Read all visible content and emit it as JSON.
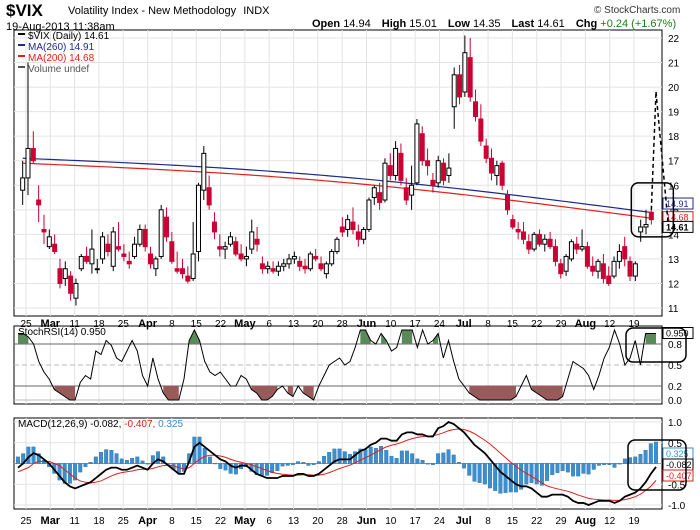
{
  "header": {
    "symbol": "$VIX",
    "name": "Volatility Index - New Methodology",
    "exchange": "INDX",
    "copyright": "© StockCharts.com",
    "date": "19-Aug-2013 11:38am",
    "quote": {
      "open_label": "Open",
      "open": "14.94",
      "high_label": "High",
      "high": "15.01",
      "low_label": "Low",
      "low": "14.35",
      "last_label": "Last",
      "last": "14.61",
      "chg_label": "Chg",
      "chg": "+0.24 (+1.67%)",
      "chg_color": "#1a7f1a"
    }
  },
  "colors": {
    "up": "#000000",
    "down": "#cc0033",
    "ma260": "#1c2a8a",
    "ma200": "#e0201a",
    "stoch_fill_hi": "#5a8a5a",
    "stoch_fill_lo": "#9a5a5a",
    "macd_hist": "#3a8fd0",
    "macd_signal": "#e0201a"
  },
  "chart_data": [
    {
      "type": "candlestick",
      "panel": "price",
      "legend": [
        "$VIX (Daily) 14.61",
        "MA(260) 14.91",
        "MA(200) 14.68",
        "Volume undef"
      ],
      "ylim": [
        11,
        22
      ],
      "y_ticks": [
        "11",
        "12",
        "13",
        "14",
        "15",
        "16",
        "17",
        "18",
        "19",
        "20",
        "21",
        "22"
      ],
      "x_tick_labels": [
        "25",
        "Mar",
        "11",
        "18",
        "25",
        "Apr",
        "8",
        "15",
        "22",
        "May",
        "6",
        "13",
        "20",
        "28",
        "Jun",
        "10",
        "17",
        "24",
        "Jul",
        "8",
        "15",
        "22",
        "29",
        "Aug",
        "12",
        "19"
      ],
      "candles": [
        [
          15.8,
          17.0,
          15.2,
          16.3
        ],
        [
          16.3,
          21.0,
          15.6,
          17.5
        ],
        [
          17.5,
          18.2,
          16.9,
          17.0
        ],
        [
          15.4,
          16.0,
          14.5,
          15.2
        ],
        [
          14.2,
          14.8,
          13.6,
          14.1
        ],
        [
          13.5,
          14.2,
          13.4,
          13.9
        ],
        [
          13.6,
          14.0,
          13.2,
          13.3
        ],
        [
          12.6,
          13.0,
          11.8,
          12.0
        ],
        [
          12.2,
          12.9,
          11.9,
          12.6
        ],
        [
          12.3,
          12.5,
          11.3,
          11.6
        ],
        [
          11.4,
          12.2,
          11.1,
          12.0
        ],
        [
          12.6,
          13.2,
          12.5,
          13.1
        ],
        [
          13.1,
          13.5,
          12.8,
          12.9
        ],
        [
          12.8,
          14.2,
          12.4,
          13.4
        ],
        [
          12.6,
          13.0,
          12.4,
          12.6
        ],
        [
          13.0,
          14.1,
          12.8,
          13.9
        ],
        [
          13.6,
          14.0,
          13.1,
          13.3
        ],
        [
          12.7,
          14.3,
          12.5,
          14.1
        ],
        [
          13.5,
          14.5,
          13.3,
          13.4
        ],
        [
          13.2,
          13.6,
          12.9,
          13.1
        ],
        [
          12.9,
          13.3,
          12.6,
          12.8
        ],
        [
          13.1,
          13.9,
          13.0,
          13.6
        ],
        [
          13.6,
          14.4,
          13.5,
          14.2
        ],
        [
          14.2,
          14.4,
          13.3,
          13.5
        ],
        [
          13.2,
          13.5,
          12.6,
          12.8
        ],
        [
          12.6,
          13.1,
          12.3,
          13.0
        ],
        [
          13.1,
          15.2,
          13.0,
          15.0
        ],
        [
          14.7,
          15.1,
          13.7,
          13.9
        ],
        [
          13.7,
          14.1,
          12.8,
          12.9
        ],
        [
          12.6,
          13.3,
          12.4,
          12.5
        ],
        [
          12.6,
          13.0,
          12.2,
          12.4
        ],
        [
          12.3,
          12.7,
          12.0,
          12.1
        ],
        [
          12.2,
          14.5,
          12.1,
          13.2
        ],
        [
          13.3,
          16.1,
          12.9,
          16.0
        ],
        [
          15.8,
          17.6,
          15.4,
          17.3
        ],
        [
          15.9,
          16.4,
          15.0,
          15.2
        ],
        [
          14.5,
          14.9,
          13.8,
          14.1
        ],
        [
          13.5,
          14.0,
          13.1,
          13.4
        ],
        [
          13.4,
          13.7,
          13.0,
          13.5
        ],
        [
          13.6,
          14.1,
          13.5,
          13.9
        ],
        [
          13.7,
          13.9,
          13.1,
          13.2
        ],
        [
          13.2,
          13.6,
          12.9,
          13.0
        ],
        [
          13.0,
          13.5,
          12.7,
          13.1
        ],
        [
          13.4,
          14.6,
          13.2,
          14.1
        ],
        [
          13.8,
          14.3,
          13.3,
          13.6
        ],
        [
          12.8,
          13.1,
          12.4,
          12.6
        ],
        [
          12.6,
          12.9,
          12.4,
          12.7
        ],
        [
          12.6,
          12.9,
          12.4,
          12.5
        ],
        [
          12.5,
          12.9,
          12.3,
          12.7
        ],
        [
          12.7,
          13.0,
          12.5,
          12.8
        ],
        [
          12.8,
          13.2,
          12.6,
          13.0
        ],
        [
          13.0,
          13.3,
          12.8,
          13.1
        ],
        [
          12.9,
          13.1,
          12.5,
          12.7
        ],
        [
          12.7,
          13.0,
          12.4,
          12.6
        ],
        [
          12.6,
          13.3,
          12.5,
          13.2
        ],
        [
          13.1,
          13.4,
          12.9,
          13.0
        ],
        [
          12.8,
          13.1,
          12.5,
          12.6
        ],
        [
          12.4,
          12.9,
          12.2,
          12.8
        ],
        [
          12.8,
          13.4,
          12.7,
          13.3
        ],
        [
          13.3,
          13.9,
          13.2,
          13.8
        ],
        [
          14.3,
          14.7,
          13.9,
          14.1
        ],
        [
          14.2,
          14.8,
          13.9,
          14.6
        ],
        [
          14.5,
          15.1,
          14.0,
          14.2
        ],
        [
          14.1,
          14.4,
          13.5,
          13.8
        ],
        [
          13.8,
          14.3,
          13.6,
          14.2
        ],
        [
          14.2,
          15.5,
          14.1,
          15.4
        ],
        [
          15.5,
          16.0,
          15.2,
          15.9
        ],
        [
          15.7,
          16.1,
          15.0,
          15.3
        ],
        [
          15.4,
          17.1,
          15.3,
          16.9
        ],
        [
          16.8,
          17.3,
          16.2,
          16.4
        ],
        [
          16.4,
          17.8,
          16.2,
          17.5
        ],
        [
          17.3,
          17.7,
          16.0,
          16.2
        ],
        [
          15.9,
          16.3,
          15.2,
          15.4
        ],
        [
          15.6,
          16.8,
          15.0,
          16.0
        ],
        [
          16.1,
          18.7,
          16.0,
          18.5
        ],
        [
          18.1,
          18.4,
          16.8,
          17.0
        ],
        [
          17.0,
          17.5,
          16.4,
          16.8
        ],
        [
          16.2,
          16.5,
          15.7,
          16.0
        ],
        [
          16.1,
          17.2,
          15.9,
          17.0
        ],
        [
          16.9,
          17.1,
          16.0,
          16.2
        ],
        [
          16.4,
          17.3,
          16.1,
          16.7
        ],
        [
          19.2,
          20.8,
          18.3,
          20.5
        ],
        [
          20.5,
          20.9,
          19.3,
          19.6
        ],
        [
          19.8,
          22.1,
          19.6,
          21.4
        ],
        [
          21.2,
          22.0,
          19.4,
          19.6
        ],
        [
          19.4,
          19.9,
          18.6,
          18.8
        ],
        [
          18.7,
          19.3,
          17.6,
          17.8
        ],
        [
          17.6,
          17.9,
          16.9,
          17.1
        ],
        [
          17.1,
          17.5,
          16.2,
          16.5
        ],
        [
          16.4,
          17.0,
          16.0,
          16.8
        ],
        [
          16.9,
          17.0,
          15.8,
          16.0
        ],
        [
          15.6,
          15.8,
          14.8,
          15.0
        ],
        [
          14.6,
          14.8,
          14.2,
          14.3
        ],
        [
          14.2,
          14.5,
          13.8,
          14.1
        ],
        [
          14.1,
          14.5,
          13.6,
          13.8
        ],
        [
          13.7,
          14.0,
          13.2,
          13.4
        ],
        [
          13.4,
          14.1,
          13.3,
          14.0
        ],
        [
          14.0,
          14.2,
          13.5,
          13.6
        ],
        [
          13.6,
          14.0,
          13.3,
          13.8
        ],
        [
          13.8,
          14.1,
          13.4,
          13.5
        ],
        [
          13.5,
          13.8,
          12.7,
          12.9
        ],
        [
          12.8,
          13.0,
          12.2,
          12.4
        ],
        [
          12.5,
          13.2,
          12.3,
          13.1
        ],
        [
          13.0,
          13.8,
          12.9,
          13.7
        ],
        [
          13.6,
          13.9,
          13.2,
          13.4
        ],
        [
          13.4,
          14.2,
          13.3,
          13.5
        ],
        [
          13.5,
          13.7,
          12.6,
          12.7
        ],
        [
          12.7,
          13.1,
          12.3,
          12.5
        ],
        [
          12.5,
          13.0,
          12.2,
          12.9
        ],
        [
          12.8,
          13.2,
          12.0,
          12.2
        ],
        [
          12.3,
          12.7,
          11.9,
          12.0
        ],
        [
          12.3,
          13.1,
          12.2,
          12.9
        ],
        [
          12.9,
          13.6,
          12.6,
          13.3
        ],
        [
          13.5,
          13.9,
          12.7,
          13.0
        ],
        [
          12.9,
          13.1,
          12.1,
          12.3
        ],
        [
          12.3,
          12.9,
          12.1,
          12.8
        ],
        [
          14.1,
          14.6,
          13.7,
          14.3
        ],
        [
          14.3,
          15.0,
          14.0,
          14.4
        ],
        [
          14.9,
          15.0,
          14.4,
          14.6
        ]
      ],
      "annotations": {
        "price_labels": [
          "14.91",
          "14.68",
          "14.61"
        ],
        "projection_tick": "20"
      }
    },
    {
      "type": "line",
      "panel": "stoch_rsi",
      "legend": "StochRSI(14) 0.950",
      "ylim": [
        0,
        1
      ],
      "y_ticks": [
        "0.0",
        "0.2",
        "0.5",
        "0.8"
      ],
      "last_label": "0.950",
      "values": [
        0.95,
        0.95,
        0.9,
        0.8,
        0.55,
        0.4,
        0.3,
        0.15,
        0.1,
        0.05,
        0.0,
        0.0,
        0.25,
        0.35,
        0.3,
        0.7,
        0.65,
        0.85,
        0.78,
        0.6,
        0.55,
        0.7,
        0.85,
        0.7,
        0.35,
        0.2,
        0.6,
        0.3,
        0.1,
        0.0,
        0.0,
        0.0,
        0.3,
        0.85,
        1.0,
        0.85,
        0.55,
        0.4,
        0.35,
        0.4,
        0.3,
        0.2,
        0.2,
        0.35,
        0.3,
        0.15,
        0.1,
        0.0,
        0.0,
        0.05,
        0.15,
        0.2,
        0.1,
        0.05,
        0.2,
        0.1,
        0.05,
        0.0,
        0.2,
        0.35,
        0.5,
        0.55,
        0.6,
        0.5,
        0.55,
        0.75,
        1.0,
        1.0,
        0.85,
        0.8,
        0.95,
        0.85,
        0.7,
        0.75,
        1.0,
        1.0,
        1.0,
        0.75,
        1.0,
        0.8,
        0.85,
        0.95,
        0.6,
        0.85,
        0.55,
        0.3,
        0.2,
        0.1,
        0.05,
        0.0,
        0.0,
        0.0,
        0.0,
        0.0,
        0.0,
        0.0,
        0.05,
        0.2,
        0.35,
        0.15,
        0.1,
        0.05,
        0.0,
        0.0,
        0.0,
        0.05,
        0.3,
        0.55,
        0.5,
        0.45,
        0.35,
        0.15,
        0.35,
        0.6,
        0.75,
        1.0,
        0.8,
        0.5,
        0.6,
        0.85,
        0.5,
        0.95,
        0.95,
        0.95
      ]
    },
    {
      "type": "line",
      "panel": "macd",
      "legend_prefix": "MACD(12,26,9)",
      "legend_values": [
        "-0.082",
        "-0.407",
        "0.325"
      ],
      "legend_colors": [
        "#000000",
        "#e0201a",
        "#3a8fd0"
      ],
      "ylim": [
        -1.0,
        1.0
      ],
      "y_ticks": [
        "-1.0",
        "-0.5",
        "0.0",
        "0.5",
        "1.0"
      ],
      "last_labels": [
        "0.325",
        "-0.082",
        "-0.407"
      ]
    }
  ],
  "macd_series": {
    "macd": [
      -0.1,
      0.0,
      0.15,
      0.25,
      0.2,
      0.1,
      0.0,
      -0.15,
      -0.3,
      -0.45,
      -0.55,
      -0.6,
      -0.55,
      -0.5,
      -0.45,
      -0.35,
      -0.25,
      -0.15,
      -0.1,
      -0.1,
      -0.15,
      -0.15,
      -0.1,
      -0.05,
      -0.1,
      -0.15,
      0.0,
      0.1,
      0.05,
      -0.05,
      -0.15,
      -0.25,
      -0.25,
      0.05,
      0.4,
      0.5,
      0.4,
      0.3,
      0.2,
      0.1,
      0.05,
      -0.05,
      -0.1,
      -0.05,
      -0.05,
      -0.15,
      -0.25,
      -0.3,
      -0.35,
      -0.35,
      -0.35,
      -0.3,
      -0.3,
      -0.3,
      -0.25,
      -0.25,
      -0.3,
      -0.3,
      -0.25,
      -0.15,
      -0.05,
      0.05,
      0.1,
      0.1,
      0.1,
      0.2,
      0.3,
      0.35,
      0.45,
      0.5,
      0.6,
      0.6,
      0.55,
      0.55,
      0.7,
      0.75,
      0.75,
      0.7,
      0.7,
      0.65,
      0.65,
      0.85,
      0.9,
      1.0,
      0.95,
      0.85,
      0.75,
      0.6,
      0.45,
      0.35,
      0.25,
      0.1,
      -0.05,
      -0.2,
      -0.3,
      -0.4,
      -0.5,
      -0.55,
      -0.55,
      -0.6,
      -0.7,
      -0.8,
      -0.8,
      -0.75,
      -0.75,
      -0.75,
      -0.8,
      -0.9,
      -0.95,
      -0.95,
      -1.0,
      -0.95,
      -0.9,
      -0.9,
      -0.9,
      -0.95,
      -0.9,
      -0.8,
      -0.75,
      -0.7,
      -0.6,
      -0.45,
      -0.25,
      -0.082
    ],
    "signal": [
      -0.2,
      -0.15,
      -0.1,
      0.0,
      0.05,
      0.05,
      0.05,
      0.0,
      -0.05,
      -0.15,
      -0.25,
      -0.35,
      -0.42,
      -0.45,
      -0.47,
      -0.45,
      -0.42,
      -0.36,
      -0.3,
      -0.25,
      -0.22,
      -0.2,
      -0.18,
      -0.15,
      -0.14,
      -0.14,
      -0.12,
      -0.08,
      -0.05,
      -0.04,
      -0.06,
      -0.1,
      -0.13,
      -0.1,
      0.0,
      0.1,
      0.17,
      0.2,
      0.2,
      0.18,
      0.15,
      0.1,
      0.06,
      0.03,
      0.0,
      -0.03,
      -0.08,
      -0.12,
      -0.17,
      -0.21,
      -0.24,
      -0.26,
      -0.27,
      -0.28,
      -0.28,
      -0.27,
      -0.27,
      -0.28,
      -0.28,
      -0.26,
      -0.22,
      -0.17,
      -0.12,
      -0.08,
      -0.04,
      0.02,
      0.08,
      0.14,
      0.2,
      0.27,
      0.34,
      0.4,
      0.44,
      0.47,
      0.51,
      0.56,
      0.6,
      0.63,
      0.65,
      0.66,
      0.67,
      0.7,
      0.74,
      0.79,
      0.82,
      0.83,
      0.82,
      0.78,
      0.72,
      0.64,
      0.56,
      0.47,
      0.36,
      0.25,
      0.14,
      0.03,
      -0.07,
      -0.16,
      -0.24,
      -0.31,
      -0.39,
      -0.47,
      -0.54,
      -0.58,
      -0.61,
      -0.64,
      -0.67,
      -0.71,
      -0.76,
      -0.8,
      -0.84,
      -0.86,
      -0.87,
      -0.88,
      -0.88,
      -0.89,
      -0.89,
      -0.87,
      -0.84,
      -0.8,
      -0.74,
      -0.65,
      -0.55,
      -0.407
    ]
  }
}
